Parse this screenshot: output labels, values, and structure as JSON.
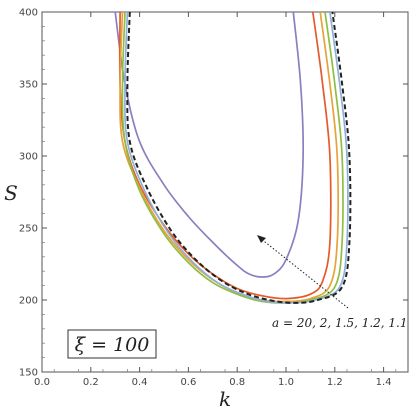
{
  "chart_data": {
    "type": "line",
    "xlabel": "k",
    "ylabel": "S",
    "xlim": [
      0.0,
      1.5
    ],
    "ylim": [
      150,
      400
    ],
    "xticks": [
      "0.0",
      "0.2",
      "0.4",
      "0.6",
      "0.8",
      "1.0",
      "1.2",
      "1.4"
    ],
    "yticks": [
      "150",
      "200",
      "250",
      "300",
      "350",
      "400"
    ],
    "grid": false,
    "inset_label": "ξ = 100",
    "annotation": "a = 20, 2, 1.5, 1.2, 1.1",
    "colors": {
      "a20": "#8a7fc0",
      "a2": "#e55a2b",
      "a1_5": "#e8a23a",
      "a1_2": "#8fbe45",
      "a1_1": "#8fb0d8",
      "limit": "#222222"
    },
    "series": [
      {
        "color": "a20",
        "points": [
          [
            0.3,
            400
          ],
          [
            0.34,
            350
          ],
          [
            0.4,
            310
          ],
          [
            0.5,
            280
          ],
          [
            0.6,
            258
          ],
          [
            0.7,
            240
          ],
          [
            0.8,
            224
          ],
          [
            0.85,
            218
          ],
          [
            0.9,
            216
          ],
          [
            0.95,
            218
          ],
          [
            1.0,
            228
          ],
          [
            1.05,
            255
          ],
          [
            1.07,
            300
          ],
          [
            1.06,
            350
          ],
          [
            1.03,
            400
          ]
        ]
      },
      {
        "color": "a2",
        "points": [
          [
            0.32,
            400
          ],
          [
            0.32,
            350
          ],
          [
            0.34,
            310
          ],
          [
            0.4,
            280
          ],
          [
            0.5,
            252
          ],
          [
            0.6,
            232
          ],
          [
            0.7,
            218
          ],
          [
            0.8,
            208
          ],
          [
            0.9,
            203
          ],
          [
            1.0,
            201
          ],
          [
            1.1,
            204
          ],
          [
            1.15,
            213
          ],
          [
            1.18,
            240
          ],
          [
            1.18,
            300
          ],
          [
            1.15,
            350
          ],
          [
            1.11,
            400
          ]
        ]
      },
      {
        "color": "a1_5",
        "points": [
          [
            0.33,
            400
          ],
          [
            0.32,
            350
          ],
          [
            0.33,
            310
          ],
          [
            0.4,
            278
          ],
          [
            0.5,
            248
          ],
          [
            0.6,
            228
          ],
          [
            0.7,
            214
          ],
          [
            0.8,
            205
          ],
          [
            0.9,
            200
          ],
          [
            1.0,
            199
          ],
          [
            1.1,
            201
          ],
          [
            1.18,
            210
          ],
          [
            1.21,
            240
          ],
          [
            1.21,
            300
          ],
          [
            1.18,
            350
          ],
          [
            1.14,
            400
          ]
        ]
      },
      {
        "color": "a1_2",
        "points": [
          [
            0.34,
            400
          ],
          [
            0.33,
            350
          ],
          [
            0.34,
            310
          ],
          [
            0.4,
            276
          ],
          [
            0.5,
            246
          ],
          [
            0.6,
            226
          ],
          [
            0.7,
            212
          ],
          [
            0.8,
            204
          ],
          [
            0.9,
            199
          ],
          [
            1.0,
            198
          ],
          [
            1.1,
            200
          ],
          [
            1.2,
            209
          ],
          [
            1.23,
            240
          ],
          [
            1.23,
            300
          ],
          [
            1.2,
            350
          ],
          [
            1.16,
            400
          ]
        ]
      },
      {
        "color": "a1_1",
        "points": [
          [
            0.35,
            400
          ],
          [
            0.34,
            350
          ],
          [
            0.35,
            310
          ],
          [
            0.42,
            276
          ],
          [
            0.52,
            246
          ],
          [
            0.62,
            226
          ],
          [
            0.72,
            212
          ],
          [
            0.82,
            204
          ],
          [
            0.92,
            199
          ],
          [
            1.02,
            198
          ],
          [
            1.12,
            200
          ],
          [
            1.22,
            209
          ],
          [
            1.25,
            240
          ],
          [
            1.25,
            300
          ],
          [
            1.22,
            350
          ],
          [
            1.18,
            400
          ]
        ]
      },
      {
        "color": "limit",
        "dashed": true,
        "points": [
          [
            0.36,
            400
          ],
          [
            0.35,
            350
          ],
          [
            0.36,
            310
          ],
          [
            0.43,
            278
          ],
          [
            0.53,
            248
          ],
          [
            0.63,
            228
          ],
          [
            0.73,
            214
          ],
          [
            0.83,
            205
          ],
          [
            0.93,
            200
          ],
          [
            1.03,
            198
          ],
          [
            1.13,
            200
          ],
          [
            1.23,
            209
          ],
          [
            1.26,
            240
          ],
          [
            1.26,
            300
          ],
          [
            1.23,
            350
          ],
          [
            1.19,
            400
          ]
        ]
      }
    ]
  }
}
